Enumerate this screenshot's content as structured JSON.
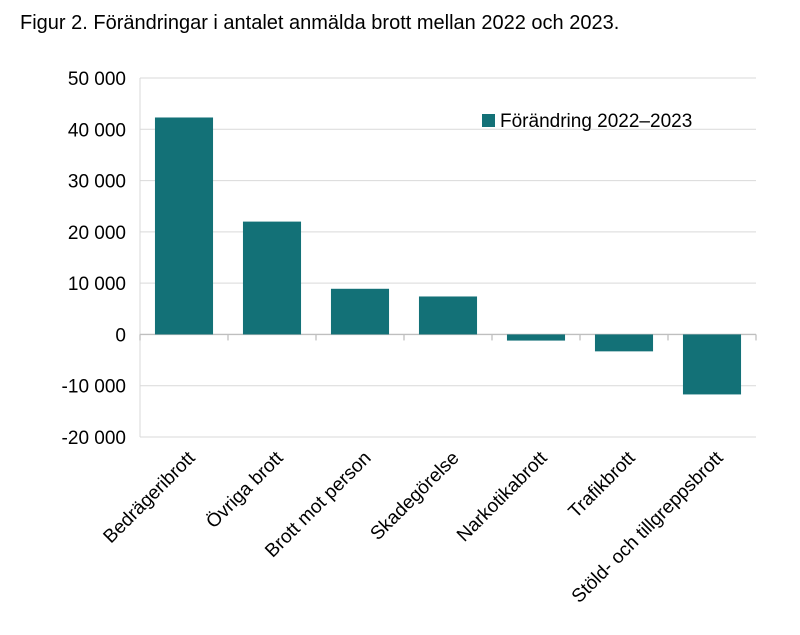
{
  "figure": {
    "title": "Figur 2. Förändringar i antalet anmälda brott mellan 2022 och 2023."
  },
  "chart_data": {
    "type": "bar",
    "title": "Figur 2. Förändringar i antalet anmälda brott mellan 2022 och 2023.",
    "xlabel": "",
    "ylabel": "",
    "categories": [
      "Bedrägeribrott",
      "Övriga brott",
      "Brott mot person",
      "Skadegörelse",
      "Narkotikabrott",
      "Trafikbrott",
      "Stöld- och tillgreppsbrott"
    ],
    "series": [
      {
        "name": "Förändring 2022–2023",
        "color": "#137177",
        "values": [
          42300,
          22000,
          8900,
          7400,
          -1200,
          -3300,
          -11700
        ]
      }
    ],
    "ylim": [
      -20000,
      50000
    ],
    "yticks": [
      50000,
      40000,
      30000,
      20000,
      10000,
      0,
      -10000,
      -20000
    ],
    "ytick_labels": [
      "50 000",
      "40 000",
      "30 000",
      "20 000",
      "10 000",
      "0",
      "-10 000",
      "-20 000"
    ],
    "grid": true,
    "legend_position": "top-right"
  }
}
